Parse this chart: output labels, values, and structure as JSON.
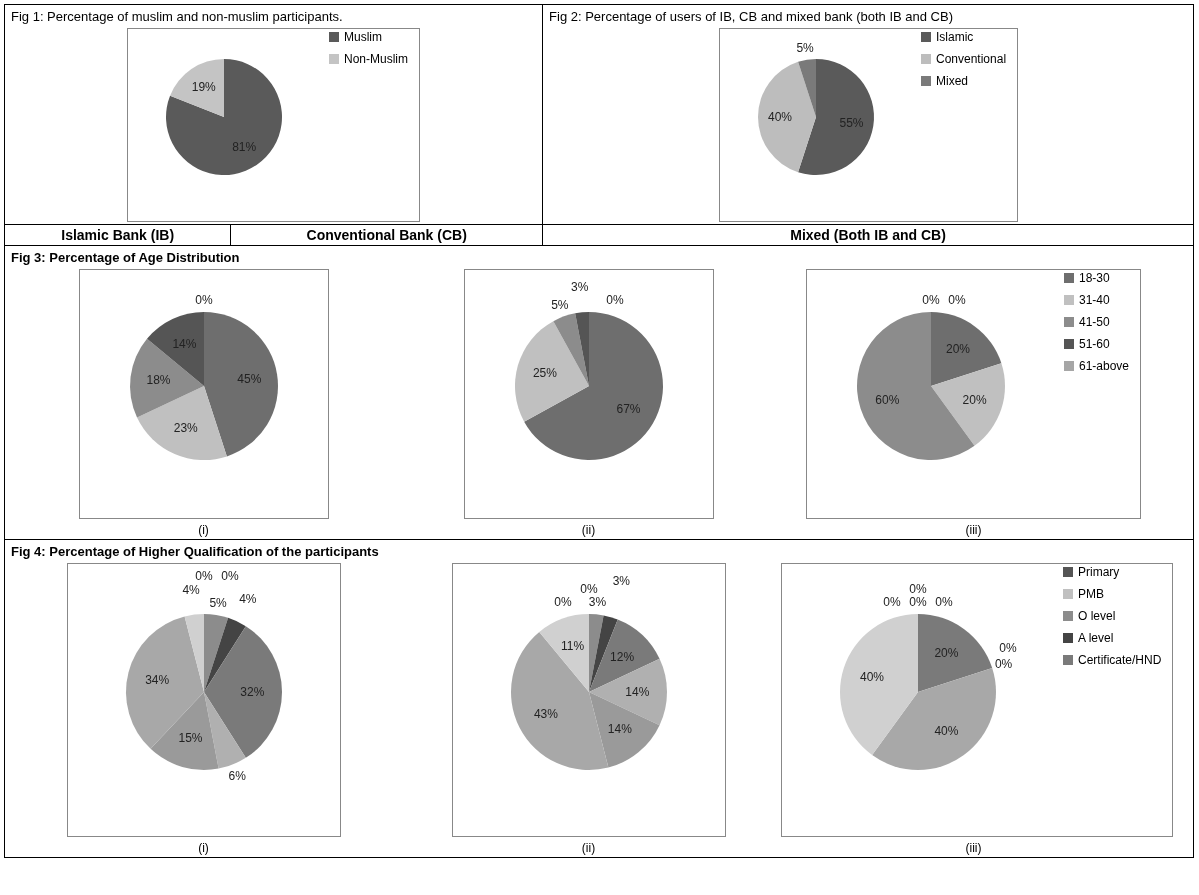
{
  "chart_data": [
    {
      "type": "pie",
      "title": "Fig 1: Percentage of muslim and non-muslim participants.",
      "categories": [
        "Muslim",
        "Non-Muslim"
      ],
      "values": [
        81,
        19
      ],
      "value_labels": [
        "81%",
        "19%"
      ],
      "colors": [
        "#5a5a5a",
        "#c4c4c4"
      ],
      "legend": "right"
    },
    {
      "type": "pie",
      "title": "Fig 2: Percentage of users of IB, CB and mixed bank (both IB and CB)",
      "categories": [
        "Islamic",
        "Conventional",
        "Mixed"
      ],
      "values": [
        55,
        40,
        5
      ],
      "value_labels": [
        "55%",
        "40%",
        "5%"
      ],
      "colors": [
        "#5a5a5a",
        "#bdbdbd",
        "#7a7a7a"
      ],
      "legend": "right"
    },
    {
      "type": "pie",
      "title": "Fig 3: Percentage of Age Distribution",
      "categories": [
        null,
        null,
        null,
        null,
        null
      ],
      "values": [
        45,
        23,
        18,
        14,
        0
      ],
      "value_labels": [
        "45%",
        "23%",
        "18%",
        "14%",
        "0%"
      ],
      "colors": [
        "#6e6e6e",
        "#c0c0c0",
        "#8c8c8c",
        "#555555",
        "#a6a6a6"
      ],
      "annotations": [
        "Islamic Bank (IB)",
        "(i)"
      ]
    },
    {
      "type": "pie",
      "categories": [
        null,
        null,
        null,
        null,
        null
      ],
      "values": [
        67,
        25,
        5,
        3,
        0
      ],
      "value_labels": [
        "67%",
        "25%",
        "5%",
        "3%",
        "0%"
      ],
      "colors": [
        "#6e6e6e",
        "#c0c0c0",
        "#8c8c8c",
        "#555555",
        "#a6a6a6"
      ],
      "annotations": [
        "Conventional Bank (CB)",
        "(ii)"
      ]
    },
    {
      "type": "pie",
      "categories": [
        "18-30",
        "31-40",
        "41-50",
        "51-60",
        "61-above"
      ],
      "values": [
        20,
        20,
        60,
        0,
        0
      ],
      "value_labels": [
        "20%",
        "20%",
        "60%",
        "0%",
        "0%"
      ],
      "colors": [
        "#6e6e6e",
        "#c0c0c0",
        "#8c8c8c",
        "#555555",
        "#a6a6a6"
      ],
      "legend": "right",
      "annotations": [
        "Mixed (Both IB and CB)",
        "(iii)"
      ]
    },
    {
      "type": "pie",
      "title": "Fig 4: Percentage of Higher Qualification of the participants",
      "categories": [
        null,
        null,
        null,
        null,
        null,
        null,
        null,
        null,
        null
      ],
      "values": [
        0,
        0,
        5,
        4,
        32,
        6,
        15,
        34,
        4
      ],
      "value_labels": [
        "0%",
        "0%",
        "5%",
        "4%",
        "32%",
        "6%",
        "15%",
        "34%",
        "4%"
      ],
      "colors": [
        "#555555",
        "#c0c0c0",
        "#8c8c8c",
        "#444444",
        "#7a7a7a",
        "#b0b0b0",
        "#9a9a9a",
        "#a8a8a8",
        "#d0d0d0"
      ],
      "annotations": [
        "(i)"
      ]
    },
    {
      "type": "pie",
      "categories": [
        null,
        null,
        null,
        null,
        null,
        null,
        null,
        null,
        null
      ],
      "values": [
        0,
        0,
        3,
        3,
        12,
        14,
        14,
        43,
        11
      ],
      "value_labels": [
        "0%",
        "0%",
        "3%",
        "3%",
        "12%",
        "14%",
        "14%",
        "43%",
        "11%"
      ],
      "colors": [
        "#555555",
        "#c0c0c0",
        "#8c8c8c",
        "#444444",
        "#7a7a7a",
        "#b0b0b0",
        "#9a9a9a",
        "#a8a8a8",
        "#d0d0d0"
      ],
      "annotations": [
        "(ii)"
      ]
    },
    {
      "type": "pie",
      "categories": [
        "Primary",
        "PMB",
        "O level",
        "A level",
        "Certificate/HND",
        null,
        null,
        null,
        null
      ],
      "values": [
        0,
        0,
        0,
        0,
        20,
        0,
        0,
        40,
        40
      ],
      "value_labels": [
        "0%",
        "0%",
        "0%",
        "0%",
        "20%",
        "0%",
        "0%",
        "40%",
        "40%"
      ],
      "colors": [
        "#555555",
        "#c0c0c0",
        "#8c8c8c",
        "#444444",
        "#7a7a7a",
        "#b0b0b0",
        "#9a9a9a",
        "#a8a8a8",
        "#d0d0d0"
      ],
      "legend": "right",
      "annotations": [
        "(iii)"
      ]
    }
  ]
}
